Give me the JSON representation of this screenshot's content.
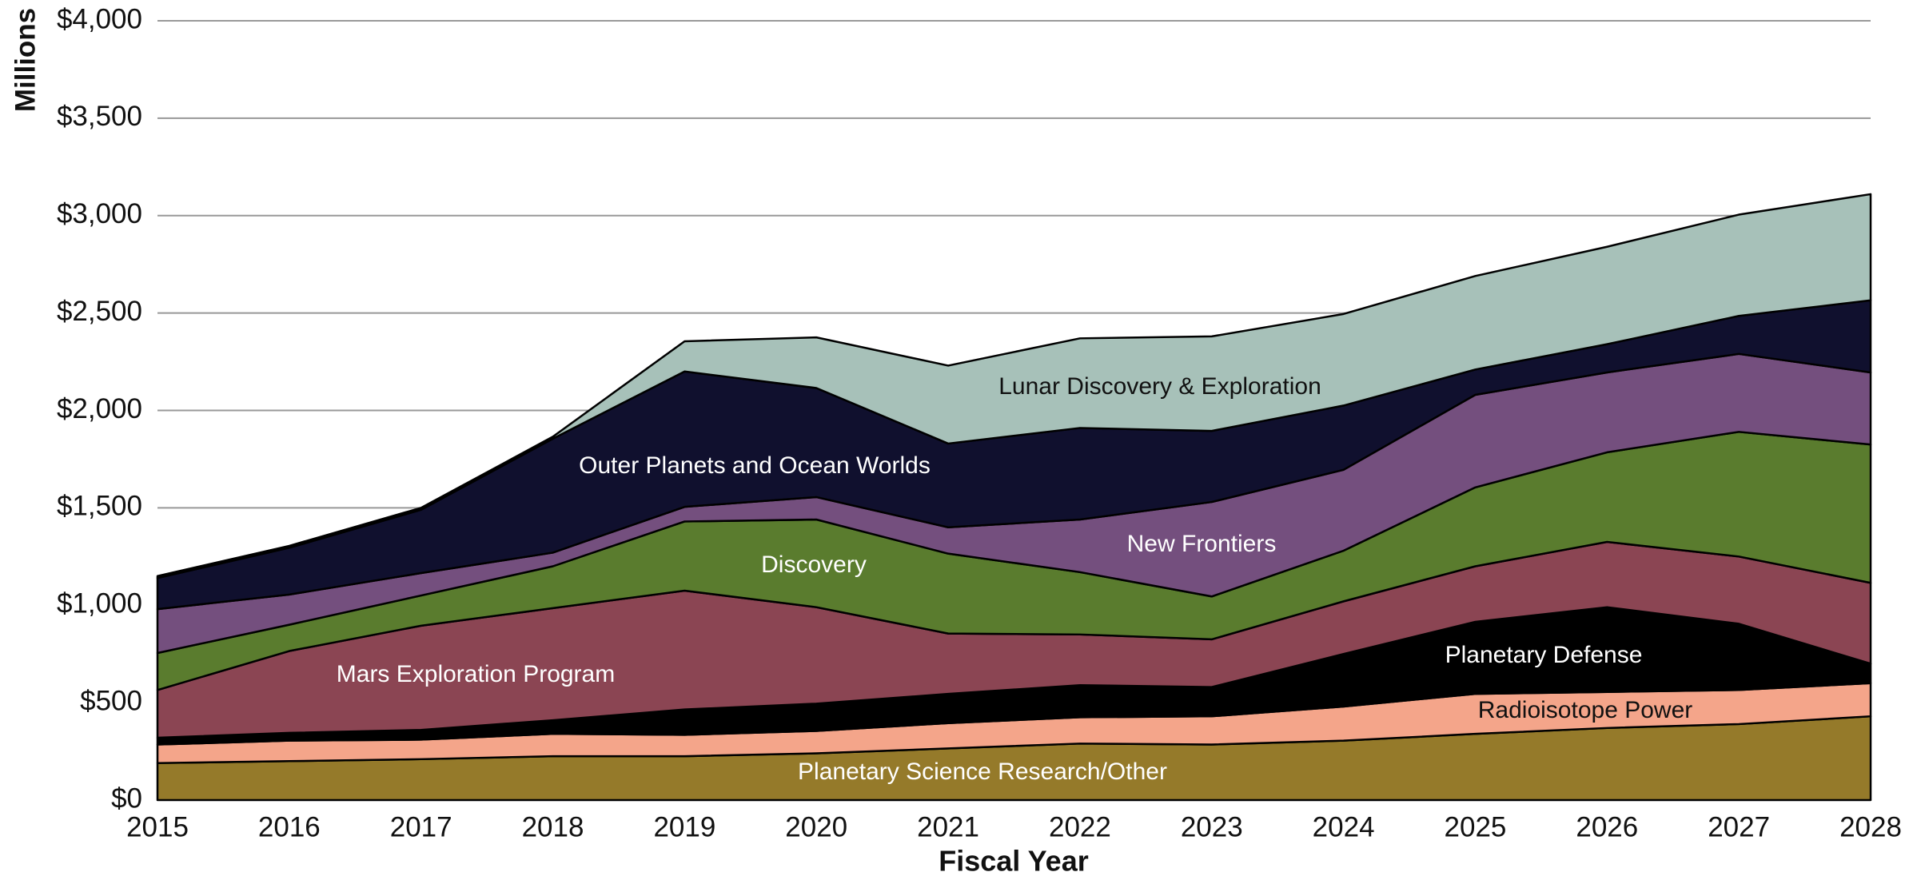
{
  "chart_data": {
    "type": "stacked_area",
    "y_label": "Millions",
    "x_label": "Fiscal Year",
    "x": [
      2015,
      2016,
      2017,
      2018,
      2019,
      2020,
      2021,
      2022,
      2023,
      2024,
      2025,
      2026,
      2027,
      2028
    ],
    "xlim": [
      2015,
      2028
    ],
    "xticks": [
      2015,
      2016,
      2017,
      2018,
      2019,
      2020,
      2021,
      2022,
      2023,
      2024,
      2025,
      2026,
      2027,
      2028
    ],
    "ylim": [
      0,
      4000
    ],
    "yticks": [
      {
        "value": 0,
        "label": "$0"
      },
      {
        "value": 500,
        "label": "$500"
      },
      {
        "value": 1000,
        "label": "$1,000"
      },
      {
        "value": 1500,
        "label": "$1,500"
      },
      {
        "value": 2000,
        "label": "$2,000"
      },
      {
        "value": 2500,
        "label": "$2,500"
      },
      {
        "value": 3000,
        "label": "$3,000"
      },
      {
        "value": 3500,
        "label": "$3,500"
      },
      {
        "value": 4000,
        "label": "$4,000"
      }
    ],
    "grid": true,
    "series": [
      {
        "name": "Planetary Science Research/Other",
        "color": "#957a2a",
        "values": [
          190,
          200,
          210,
          225,
          225,
          240,
          265,
          290,
          285,
          305,
          340,
          370,
          390,
          430
        ]
      },
      {
        "name": "Radioisotope Power",
        "color": "#f4a58a",
        "values": [
          95,
          105,
          100,
          115,
          110,
          115,
          130,
          135,
          145,
          175,
          205,
          185,
          175,
          170
        ]
      },
      {
        "name": "Planetary Defense",
        "color": "#000000",
        "values": [
          35,
          40,
          50,
          70,
          130,
          140,
          150,
          165,
          150,
          270,
          370,
          435,
          340,
          100
        ]
      },
      {
        "name": "Mars Exploration Program",
        "color": "#8b4553",
        "values": [
          245,
          420,
          535,
          575,
          610,
          495,
          310,
          260,
          245,
          270,
          285,
          335,
          345,
          415
        ]
      },
      {
        "name": "Discovery",
        "color": "#5a7c2e",
        "values": [
          190,
          135,
          155,
          215,
          355,
          450,
          410,
          320,
          220,
          260,
          405,
          460,
          640,
          710
        ]
      },
      {
        "name": "New Frontiers",
        "color": "#744f7e",
        "values": [
          225,
          155,
          115,
          70,
          75,
          115,
          135,
          270,
          485,
          415,
          475,
          410,
          400,
          370
        ]
      },
      {
        "name": "Outer Planets and Ocean Worlds",
        "color": "#10102e",
        "values": [
          160,
          240,
          325,
          585,
          695,
          560,
          430,
          470,
          365,
          330,
          130,
          145,
          195,
          370
        ]
      },
      {
        "name": "Lunar Discovery & Exploration",
        "color": "#a7c1b9",
        "values": [
          10,
          10,
          10,
          10,
          155,
          260,
          400,
          460,
          485,
          470,
          480,
          500,
          520,
          545
        ]
      }
    ]
  }
}
